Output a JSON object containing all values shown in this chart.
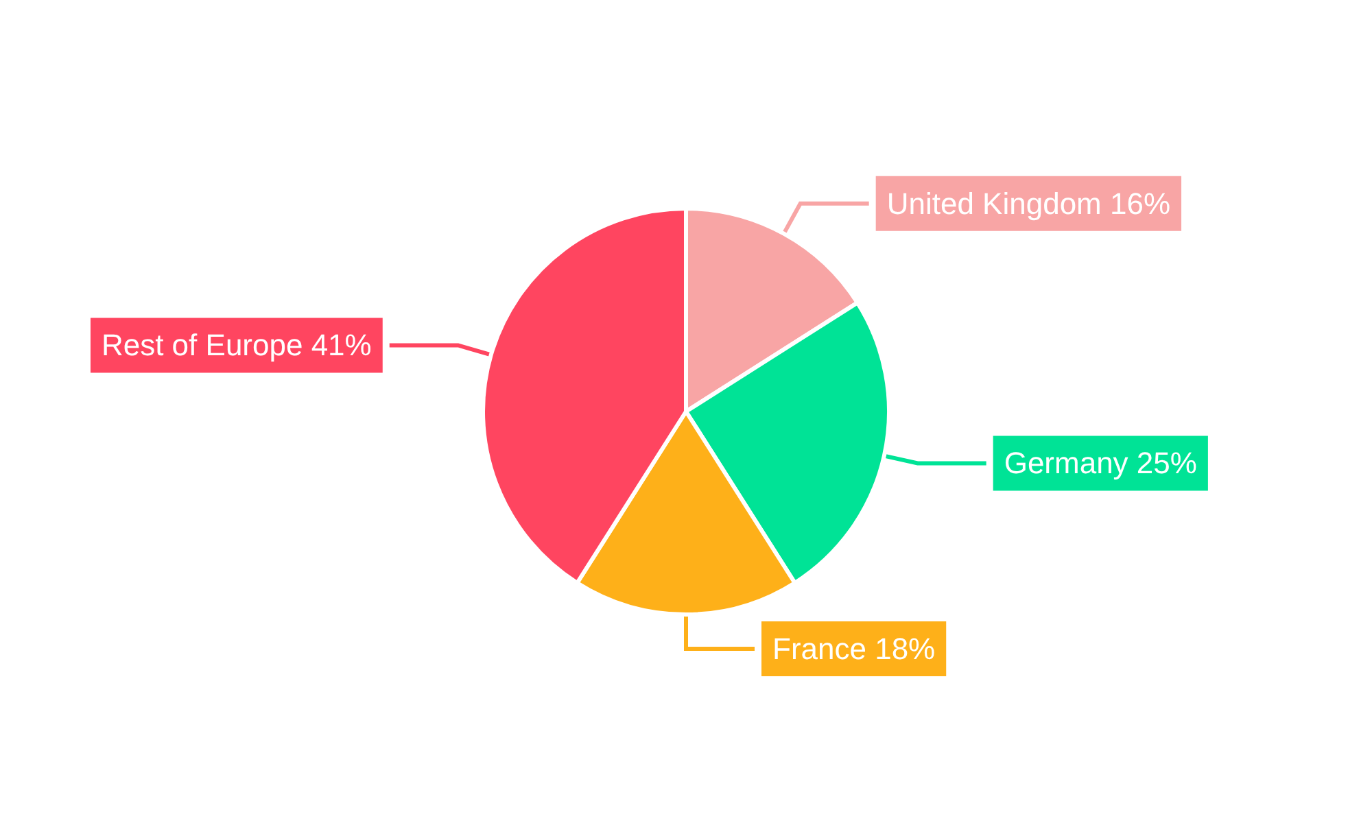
{
  "chart_data": {
    "type": "pie",
    "categories": [
      "United Kingdom",
      "Germany",
      "France",
      "Rest of Europe"
    ],
    "values": [
      16,
      25,
      18,
      41
    ],
    "value_labels": [
      "16%",
      "25%",
      "18%",
      "41%"
    ],
    "colors": [
      "#f8a5a5",
      "#00e396",
      "#feb019",
      "#ff4560"
    ]
  }
}
